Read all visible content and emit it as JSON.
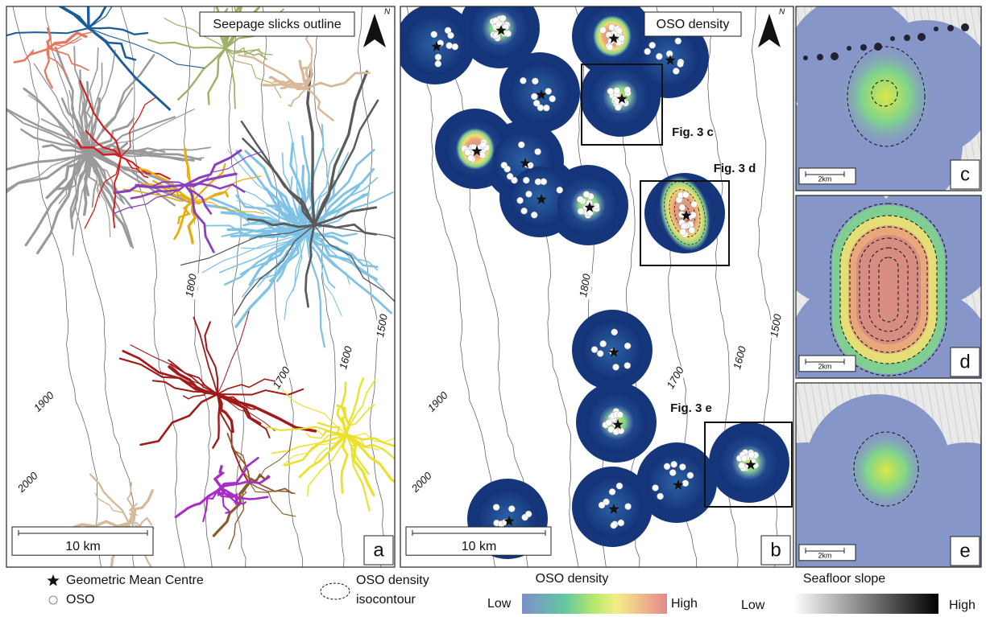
{
  "panels": [
    {
      "title": "Seepage slicks outline",
      "north": "N",
      "scale": "10 km",
      "letter": "a",
      "contours": [
        "1800",
        "1700",
        "1600",
        "1500",
        "1900",
        "2000"
      ]
    },
    {
      "title": "OSO density",
      "north": "N",
      "scale": "10 km",
      "letter": "b",
      "contours": [
        "1800",
        "1700",
        "1600",
        "1500",
        "1900",
        "2000"
      ],
      "callouts": [
        "Fig. 3 c",
        "Fig. 3 d",
        "Fig. 3 e"
      ]
    },
    {
      "scale": "2km",
      "letter": "c"
    },
    {
      "scale": "2km",
      "letter": "d"
    },
    {
      "scale": "2km",
      "letter": "e"
    }
  ],
  "legend": {
    "centre": "Geometric Mean Centre",
    "oso": "OSO",
    "isocontour": [
      "OSO density",
      "isocontour"
    ],
    "density": {
      "title": "OSO density",
      "low": "Low",
      "high": "High"
    },
    "slope": {
      "title": "Seafloor slope",
      "low": "Low",
      "high": "High"
    }
  }
}
